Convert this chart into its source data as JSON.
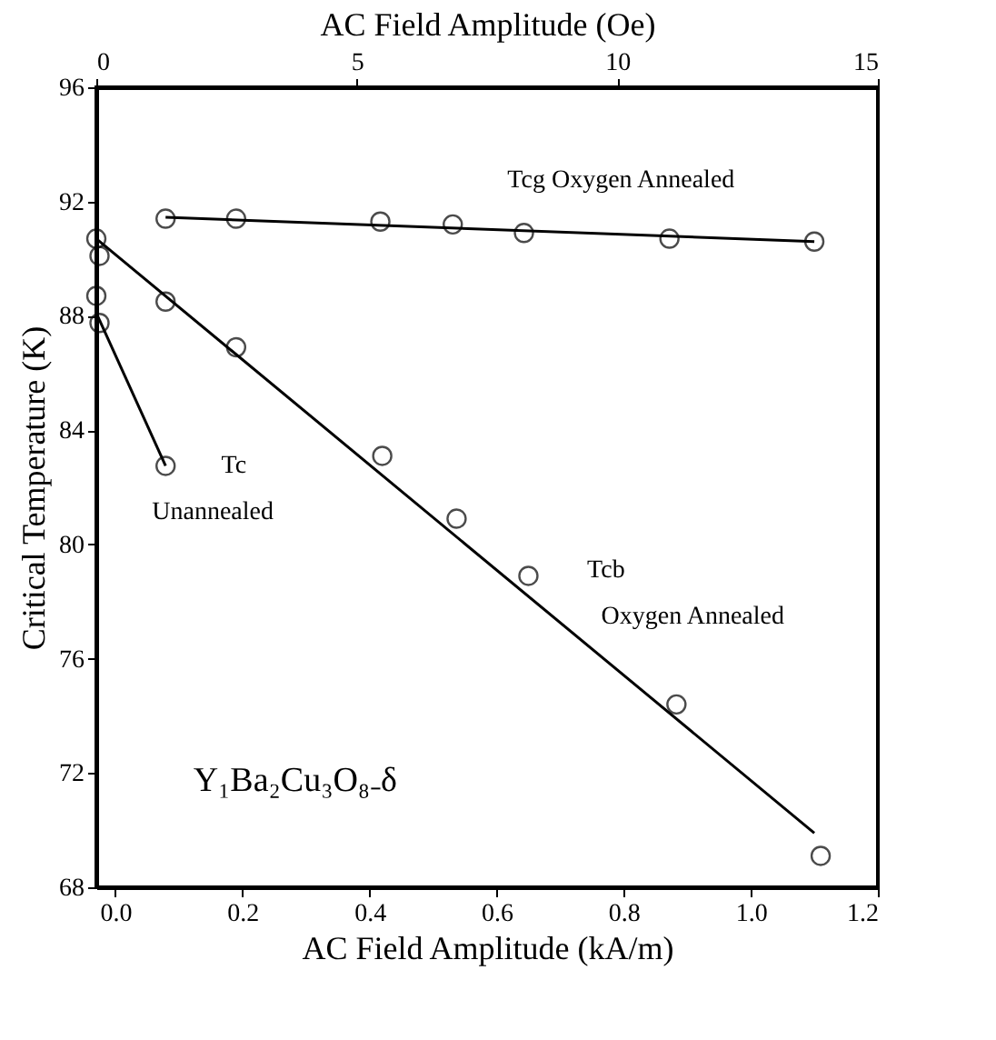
{
  "chart_data": {
    "type": "scatter",
    "xlabel": "AC Field Amplitude (kA/m)",
    "ylabel": "Critical Temperature (K)",
    "x2label": "AC Field Amplitude (Oe)",
    "xlim": [
      -0.03,
      1.2
    ],
    "xticks": [
      {
        "value": 0,
        "label": "0.0"
      },
      0.2,
      0.4,
      0.6,
      0.8,
      {
        "value": 1,
        "label": "1.0"
      },
      1.2
    ],
    "x2lim": [
      0,
      15
    ],
    "x2ticks": [
      0,
      5,
      10,
      15
    ],
    "ylim": [
      68,
      96
    ],
    "yticks": [
      68,
      72,
      76,
      80,
      84,
      88,
      92,
      96
    ],
    "marker": "circle",
    "grid": false,
    "series": [
      {
        "color": "#000000",
        "x": [
          0.079,
          0.19,
          0.417,
          0.531,
          0.643,
          0.872,
          1.1
        ],
        "values": [
          91.4,
          91.4,
          91.3,
          91.2,
          90.9,
          90.7,
          90.6
        ]
      },
      {
        "color": "#000000",
        "x": [
          -0.03,
          -0.025,
          0.079,
          0.19,
          0.42,
          0.537,
          0.65,
          0.883,
          1.11
        ],
        "values": [
          90.7,
          90.1,
          88.5,
          86.9,
          83.1,
          80.9,
          78.9,
          74.4,
          69.1
        ]
      },
      {
        "color": "#000000",
        "x": [
          -0.03,
          -0.025,
          0.079
        ],
        "values": [
          88.7,
          87.75,
          82.75
        ]
      },
      {
        "type": "line",
        "marker": "none",
        "color": "#000000",
        "x": [
          0.079,
          1.1
        ],
        "values": [
          91.45,
          90.6
        ]
      },
      {
        "type": "line",
        "marker": "none",
        "color": "#000000",
        "x": [
          -0.03,
          1.1
        ],
        "values": [
          90.7,
          69.9
        ]
      },
      {
        "type": "line",
        "marker": "none",
        "color": "#000000",
        "x": [
          -0.03,
          0.079
        ],
        "values": [
          88.1,
          82.75
        ]
      }
    ],
    "annotations": [
      "Tcg  Oxygen Annealed",
      "Tc",
      "Unannealed",
      "Tcb",
      "Oxygen Annealed",
      "Y₁Ba₂Cu₃O₈₋δ"
    ]
  }
}
